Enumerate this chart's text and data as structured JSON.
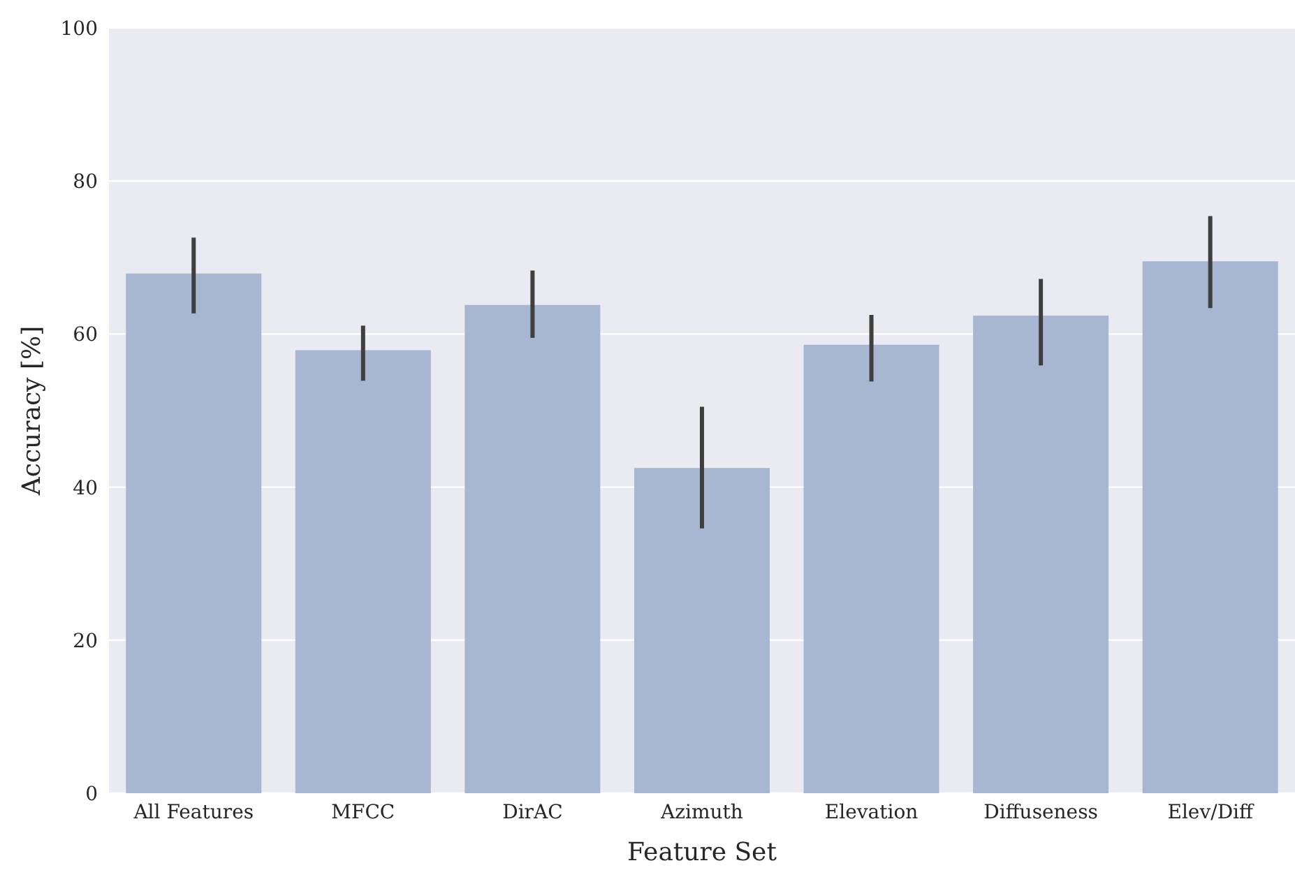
{
  "chart_data": {
    "type": "bar",
    "xlabel": "Feature Set",
    "ylabel": "Accuracy [%]",
    "categories": [
      "All Features",
      "MFCC",
      "DirAC",
      "Azimuth",
      "Elevation",
      "Diffuseness",
      "Elev/Diff"
    ],
    "values": [
      67.9,
      57.9,
      63.8,
      42.5,
      58.6,
      62.4,
      69.5
    ],
    "errors": [
      [
        62.7,
        72.6
      ],
      [
        53.9,
        61.1
      ],
      [
        59.5,
        68.3
      ],
      [
        34.6,
        50.5
      ],
      [
        53.8,
        62.5
      ],
      [
        55.9,
        67.2
      ],
      [
        63.4,
        75.4
      ]
    ],
    "color": "#a7b6d1",
    "ylim": [
      0,
      100
    ],
    "yticks": [
      0,
      20,
      40,
      60,
      80,
      100
    ],
    "grid": "y"
  }
}
